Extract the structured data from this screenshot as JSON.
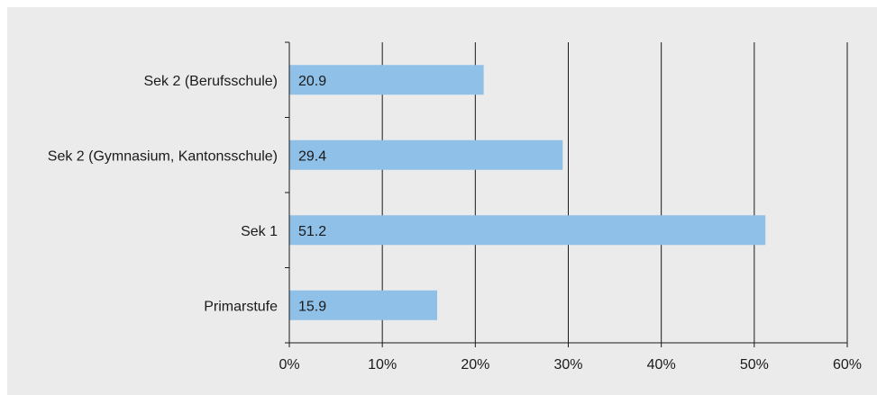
{
  "chart_data": {
    "type": "bar",
    "orientation": "horizontal",
    "categories": [
      "Sek 2 (Berufsschule)",
      "Sek 2 (Gymnasium, Kantonsschule)",
      "Sek 1",
      "Primarstufe"
    ],
    "values": [
      20.9,
      29.4,
      51.2,
      15.9
    ],
    "value_labels": [
      "20.9",
      "29.4",
      "51.2",
      "15.9"
    ],
    "xlim": [
      0,
      60
    ],
    "x_ticks": [
      0,
      10,
      20,
      30,
      40,
      50,
      60
    ],
    "x_tick_labels": [
      "0%",
      "10%",
      "20%",
      "30%",
      "40%",
      "50%",
      "60%"
    ],
    "grid": "vertical",
    "bar_color": "#8fc0e8",
    "background_color": "#ebebeb"
  }
}
